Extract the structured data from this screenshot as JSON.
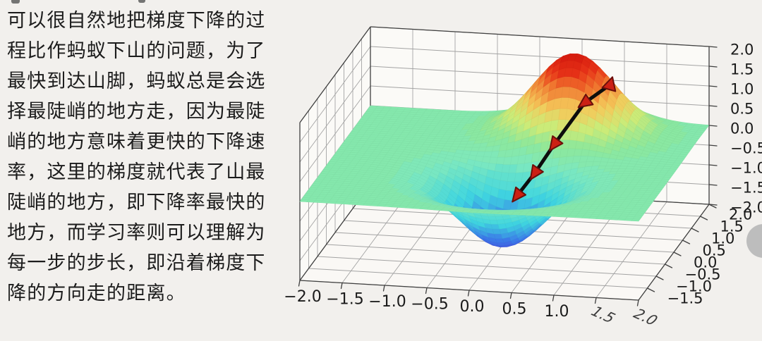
{
  "page": {
    "background": "#f2f0ed"
  },
  "paragraph": {
    "color": "#1c1c1c",
    "lines": [
      "可以很自然地把梯度下降的过",
      "程比作蚂蚁下山的问题，为了",
      "最快到达山脚，蚂蚁总是会选",
      "择最陡峭的地方走，因为最陡",
      "峭的地方意味着更快的下降速",
      "率，这里的梯度就代表了山最",
      "陡峭的地方，即下降率最快的",
      "地方，而学习率则可以理解为",
      "每一步的步长，即沿着梯度下",
      "降的方向走的距离。"
    ]
  },
  "floating_widget": {
    "color": "#b7b7b7"
  },
  "chart_data": {
    "type": "surface3d",
    "title": "",
    "xlabel": "",
    "ylabel": "",
    "zlabel": "",
    "x_range": [
      -2,
      2
    ],
    "y_range": [
      -2,
      2
    ],
    "z_range": [
      -2,
      2
    ],
    "grid": true,
    "x_ticks": [
      "−2.0",
      "−1.5",
      "−1.0",
      "−0.5",
      "0.0",
      "0.5",
      "1.0"
    ],
    "x_ticks_distorted": [
      "1.5",
      "2.0"
    ],
    "y_ticks": [
      "2.0",
      "1.5",
      "1.0",
      "0.5",
      "0.0",
      "−0.5",
      "−1.0",
      "−1.5"
    ],
    "z_ticks": [
      "2.0",
      "1.5",
      "1.0",
      "0.5",
      "0.0",
      "−0.5",
      "−1.0",
      "−1.5",
      "−2.0"
    ],
    "tick_values": {
      "x": [
        -2,
        -1.5,
        -1,
        -0.5,
        0,
        0.5,
        1
      ],
      "x_distorted": [
        1.5,
        2
      ],
      "y": [
        2,
        1.5,
        1,
        0.5,
        0,
        -0.5,
        -1,
        -1.5
      ],
      "z": [
        2,
        1.5,
        1,
        0.5,
        0,
        -0.5,
        -1,
        -1.5,
        -2
      ]
    },
    "surface": {
      "grid_n": 48,
      "gaussians": [
        {
          "amp": 2.05,
          "x0": 0.55,
          "y0": 1.3,
          "width": 0.45
        },
        {
          "amp": -1.75,
          "x0": 0.1,
          "y0": -0.55,
          "width": 0.5
        }
      ],
      "colormap": [
        [
          0.0,
          "#4a3bd8"
        ],
        [
          0.15,
          "#3b7ae8"
        ],
        [
          0.3,
          "#3fd6e0"
        ],
        [
          0.45,
          "#7ce8c0"
        ],
        [
          0.55,
          "#8ee89a"
        ],
        [
          0.65,
          "#cdeb77"
        ],
        [
          0.75,
          "#f5c95a"
        ],
        [
          0.85,
          "#f07830"
        ],
        [
          0.93,
          "#e83418"
        ],
        [
          1.0,
          "#d81e10"
        ]
      ]
    },
    "descent_path": {
      "points": [
        [
          1.0,
          1.2
        ],
        [
          0.78,
          0.8
        ],
        [
          0.5,
          0.42
        ],
        [
          0.32,
          0.18
        ],
        [
          0.15,
          0.0
        ]
      ],
      "z_offset": 0.12,
      "line_color": "#0d0d0d",
      "line_width": 5,
      "marker_fill": "#cc2014",
      "marker_edge": "#6b0f0b",
      "marker_size": 11
    },
    "view": {
      "origin": [
        325,
        232
      ],
      "x_unit": [
        120,
        7
      ],
      "y_unit": [
        25,
        -34
      ],
      "z_unit": 56
    },
    "style": {
      "pane_wall": "#fbfaf7",
      "pane_floor": "#faf8f5",
      "grid_color": "#a3a3a3",
      "edge_color": "#3f3f3f",
      "tick_color": "#1a1a1a",
      "tick_font_px": 21
    }
  }
}
